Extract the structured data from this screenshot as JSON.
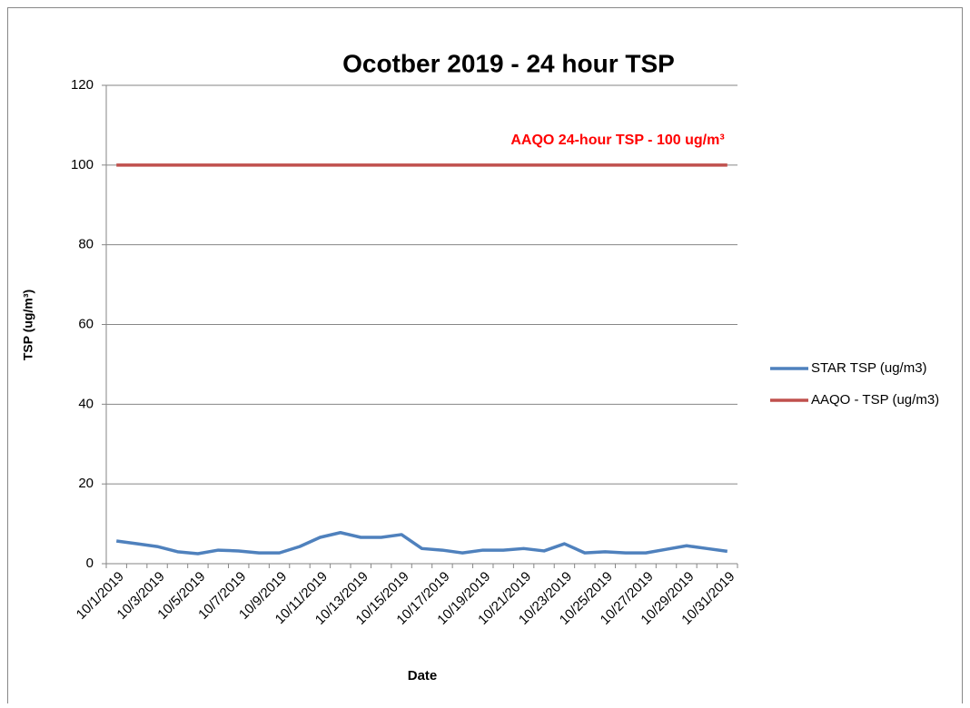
{
  "chart_data": {
    "type": "line",
    "title": "Ocotber 2019 - 24 hour TSP",
    "xlabel": "Date",
    "ylabel": "TSP (ug/m³)",
    "annotation": "AAQO 24-hour TSP - 100 ug/m³",
    "categories": [
      "10/1/2019",
      null,
      "10/3/2019",
      null,
      "10/5/2019",
      null,
      "10/7/2019",
      null,
      "10/9/2019",
      null,
      "10/11/2019",
      null,
      "10/13/2019",
      null,
      "10/15/2019",
      null,
      "10/17/2019",
      null,
      "10/19/2019",
      null,
      "10/21/2019",
      null,
      "10/23/2019",
      null,
      "10/25/2019",
      null,
      "10/27/2019",
      null,
      "10/29/2019",
      null,
      "10/31/2019"
    ],
    "series": [
      {
        "name": "STAR TSP (ug/m3)",
        "color": "#4f81bd",
        "values": [
          5.7,
          5.0,
          4.3,
          3.0,
          2.5,
          3.4,
          3.2,
          2.7,
          2.7,
          4.3,
          6.6,
          7.8,
          6.6,
          6.6,
          7.3,
          3.8,
          3.4,
          2.7,
          3.4,
          3.4,
          3.8,
          3.2,
          5.0,
          2.7,
          3.0,
          2.7,
          2.7,
          3.6,
          4.5,
          3.8,
          3.1
        ]
      },
      {
        "name": "AAQO - TSP (ug/m3)",
        "color": "#c0504d",
        "values": [
          100,
          100,
          100,
          100,
          100,
          100,
          100,
          100,
          100,
          100,
          100,
          100,
          100,
          100,
          100,
          100,
          100,
          100,
          100,
          100,
          100,
          100,
          100,
          100,
          100,
          100,
          100,
          100,
          100,
          100,
          100
        ]
      }
    ],
    "ylim": [
      0,
      120
    ],
    "yticks": [
      0,
      20,
      40,
      60,
      80,
      100,
      120
    ],
    "grid": true,
    "legend": "right"
  }
}
